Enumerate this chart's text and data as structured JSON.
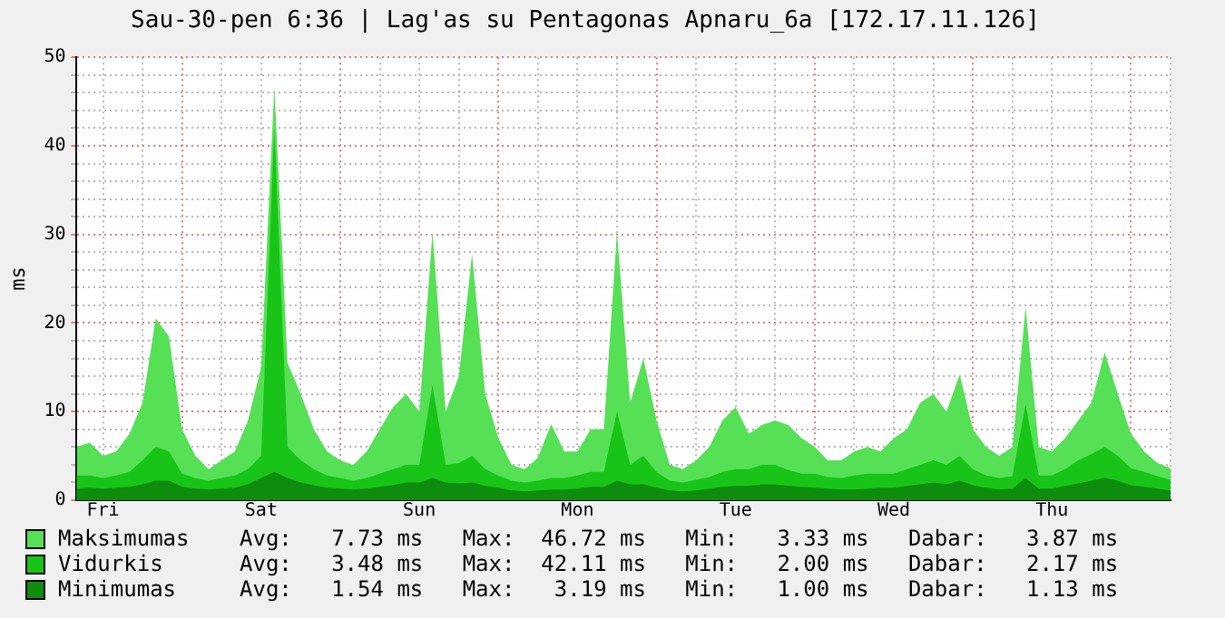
{
  "chart_data": {
    "type": "area",
    "title": "Sau-30-pen 6:36 | Lag'as su Pentagonas Apnaru_6a [172.17.11.126]",
    "ylabel": "ms",
    "categories": [
      null,
      null,
      "Fri",
      null,
      null,
      null,
      null,
      null,
      null,
      null,
      null,
      null,
      null,
      null,
      "Sat",
      null,
      null,
      null,
      null,
      null,
      null,
      null,
      null,
      null,
      null,
      null,
      "Sun",
      null,
      null,
      null,
      null,
      null,
      null,
      null,
      null,
      null,
      null,
      null,
      "Mon",
      null,
      null,
      null,
      null,
      null,
      null,
      null,
      null,
      null,
      null,
      null,
      "Tue",
      null,
      null,
      null,
      null,
      null,
      null,
      null,
      null,
      null,
      null,
      null,
      "Wed",
      null,
      null,
      null,
      null,
      null,
      null,
      null,
      null,
      null,
      null,
      null,
      "Thu",
      null,
      null,
      null,
      null,
      null,
      null,
      null,
      null,
      null
    ],
    "series": [
      {
        "name": "Maksimumas",
        "color": "#55e055",
        "values": [
          6,
          6.5,
          5,
          5.5,
          7.5,
          11,
          20.5,
          18.5,
          8,
          5,
          3.5,
          4.5,
          5.5,
          9,
          15,
          46.7,
          15.5,
          12,
          8,
          5.5,
          4.5,
          4,
          5.5,
          8,
          10.5,
          12,
          10,
          30.3,
          10,
          14,
          27.8,
          12,
          7,
          4,
          3.5,
          4.8,
          8.6,
          5.5,
          5.5,
          8,
          8,
          30.3,
          11,
          16,
          9,
          4,
          3.5,
          4.5,
          6,
          9,
          10.5,
          7.5,
          8.5,
          9,
          8.5,
          7,
          6,
          4.5,
          4.5,
          5.5,
          6,
          5.5,
          7,
          8,
          11,
          12,
          10,
          14.2,
          8,
          6,
          5,
          6,
          21.8,
          6,
          5.5,
          7,
          9,
          11,
          16.7,
          12,
          7.5,
          5.5,
          4.2,
          3.6
        ]
      },
      {
        "name": "Vidurkis",
        "color": "#18c418",
        "values": [
          2.8,
          2.8,
          2.5,
          2.8,
          3.2,
          4.5,
          6,
          5.5,
          3,
          2.5,
          2.2,
          2.5,
          2.8,
          3.5,
          5,
          42.1,
          6,
          4.5,
          3.5,
          2.8,
          2.5,
          2.2,
          2.5,
          3,
          3.5,
          4,
          4,
          13,
          4,
          4.2,
          5,
          3.5,
          2.8,
          2.2,
          2,
          2.2,
          2.5,
          2.5,
          2.8,
          3.2,
          3.2,
          10,
          4,
          5,
          3.2,
          2.2,
          2,
          2.3,
          2.6,
          3.2,
          3.5,
          3.5,
          4,
          4,
          3.4,
          3,
          3,
          2.6,
          2.5,
          2.8,
          3,
          3,
          3,
          3.5,
          4,
          4.5,
          4,
          5,
          3.5,
          2.8,
          2.5,
          2.7,
          10.8,
          2.8,
          2.8,
          3.5,
          4.5,
          5.2,
          6,
          5,
          3.6,
          3.2,
          2.7,
          2.3
        ]
      },
      {
        "name": "Minimumas",
        "color": "#0e8c0e",
        "values": [
          1.3,
          1.4,
          1.3,
          1.4,
          1.5,
          1.8,
          2.2,
          2.2,
          1.5,
          1.3,
          1.2,
          1.3,
          1.4,
          1.8,
          2.5,
          3.2,
          2.5,
          2,
          1.7,
          1.4,
          1.3,
          1.2,
          1.3,
          1.5,
          1.7,
          2,
          2,
          2.5,
          2,
          1.9,
          2,
          1.6,
          1.4,
          1.1,
          1,
          1.1,
          1.2,
          1.2,
          1.3,
          1.5,
          1.5,
          2.2,
          1.8,
          1.8,
          1.4,
          1.1,
          1,
          1.1,
          1.3,
          1.5,
          1.6,
          1.6,
          1.8,
          1.8,
          1.6,
          1.5,
          1.4,
          1.3,
          1.2,
          1.2,
          1.3,
          1.4,
          1.4,
          1.6,
          1.8,
          2,
          1.8,
          2.2,
          1.7,
          1.4,
          1.2,
          1.3,
          2.5,
          1.3,
          1.3,
          1.6,
          1.9,
          2.2,
          2.5,
          2.2,
          1.7,
          1.5,
          1.3,
          1.1
        ]
      }
    ],
    "annotations": [
      "Avg:   7.73 ms   Max:  46.72 ms   Min:   3.33 ms   Dabar:   3.87 ms",
      "Avg:   3.48 ms   Max:  42.11 ms   Min:   2.00 ms   Dabar:   2.17 ms",
      "Avg:   1.54 ms   Max:   3.19 ms   Min:   1.00 ms   Dabar:   1.13 ms"
    ],
    "ylim": [
      0,
      50
    ],
    "yticks": [
      0,
      {
        "value": 2,
        "label": null
      },
      {
        "value": 4,
        "label": null
      },
      {
        "value": 6,
        "label": null
      },
      {
        "value": 8,
        "label": null
      },
      10,
      {
        "value": 12,
        "label": null
      },
      {
        "value": 14,
        "label": null
      },
      {
        "value": 16,
        "label": null
      },
      {
        "value": 18,
        "label": null
      },
      20,
      {
        "value": 22,
        "label": null
      },
      {
        "value": 24,
        "label": null
      },
      {
        "value": 26,
        "label": null
      },
      {
        "value": 28,
        "label": null
      },
      30,
      {
        "value": 32,
        "label": null
      },
      {
        "value": 34,
        "label": null
      },
      {
        "value": 36,
        "label": null
      },
      {
        "value": 38,
        "label": null
      },
      40,
      {
        "value": 42,
        "label": null
      },
      {
        "value": 44,
        "label": null
      },
      {
        "value": 46,
        "label": null
      },
      {
        "value": 48,
        "label": null
      },
      50
    ],
    "grid": true,
    "legend": "bottom"
  }
}
